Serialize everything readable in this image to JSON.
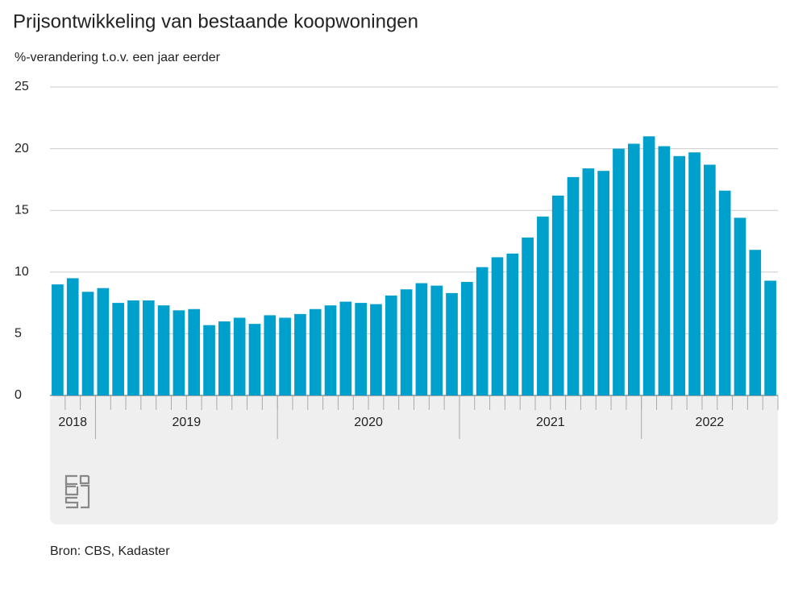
{
  "chart_data": {
    "type": "bar",
    "title": "Prijsontwikkeling van bestaande koopwoningen",
    "subtitle": "%-verandering t.o.v. een jaar eerder",
    "source": "Bron: CBS, Kadaster",
    "categories": [
      "2018",
      "2018",
      "2018",
      "2019",
      "2019",
      "2019",
      "2019",
      "2019",
      "2019",
      "2019",
      "2019",
      "2019",
      "2019",
      "2019",
      "2019",
      "2020",
      "2020",
      "2020",
      "2020",
      "2020",
      "2020",
      "2020",
      "2020",
      "2020",
      "2020",
      "2020",
      "2020",
      "2021",
      "2021",
      "2021",
      "2021",
      "2021",
      "2021",
      "2021",
      "2021",
      "2021",
      "2021",
      "2021",
      "2021",
      "2022",
      "2022",
      "2022",
      "2022",
      "2022",
      "2022",
      "2022",
      "2022",
      "2022"
    ],
    "values": [
      9.0,
      9.5,
      8.4,
      8.7,
      7.5,
      7.7,
      7.7,
      7.3,
      6.9,
      7.0,
      5.7,
      6.0,
      6.3,
      5.8,
      6.5,
      6.3,
      6.6,
      7.0,
      7.3,
      7.6,
      7.5,
      7.4,
      8.1,
      8.6,
      9.1,
      8.9,
      8.3,
      9.2,
      10.4,
      11.2,
      11.5,
      12.8,
      14.5,
      16.2,
      17.7,
      18.4,
      18.2,
      20.0,
      20.4,
      21.0,
      20.2,
      19.4,
      19.7,
      18.7,
      16.6,
      14.4,
      11.8,
      9.3
    ],
    "color": "#00a0cc",
    "ylim": [
      0,
      25
    ],
    "yticks": [
      0,
      5,
      10,
      15,
      20,
      25
    ],
    "grid": true
  }
}
